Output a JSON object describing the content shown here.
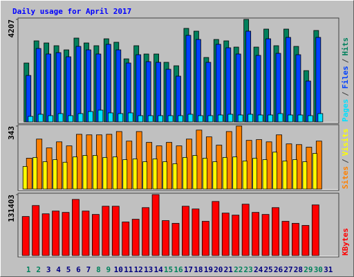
{
  "separator": "/",
  "chart_data": [
    {
      "type": "bar",
      "title": "Daily usage for April 2017",
      "ylim": [
        0,
        4207
      ],
      "yticks": [
        4207
      ],
      "series": [
        {
          "name": "Pages",
          "color": "#00e0ff",
          "values": [
            227,
            313,
            256,
            341,
            256,
            341,
            426,
            483,
            370,
            341,
            370,
            256,
            256,
            256,
            256,
            256,
            313,
            256,
            256,
            284,
            313,
            284,
            313,
            284,
            284,
            341,
            284,
            284,
            256,
            341,
            null
          ]
        },
        {
          "name": "Files",
          "color": "#0040ff",
          "values": [
            1905,
            3013,
            2786,
            2843,
            2672,
            3099,
            2956,
            2786,
            3184,
            2956,
            2416,
            2757,
            2473,
            2445,
            2160,
            1876,
            3553,
            3383,
            2445,
            3184,
            3042,
            2786,
            3724,
            2729,
            3411,
            2814,
            3468,
            2757,
            1677,
            3468,
            null
          ]
        },
        {
          "name": "Hits",
          "color": "#00805c",
          "values": [
            2416,
            3326,
            3240,
            3127,
            2956,
            3440,
            3240,
            3127,
            3411,
            3269,
            2587,
            3127,
            2786,
            2786,
            2445,
            2303,
            3838,
            3724,
            2644,
            3383,
            3326,
            3070,
            4207,
            3070,
            3809,
            3127,
            3809,
            3099,
            2104,
            3752,
            null
          ]
        }
      ]
    },
    {
      "type": "bar",
      "ylim": [
        0,
        343
      ],
      "yticks": [
        343
      ],
      "series": [
        {
          "name": "Sites",
          "color": "#ff8000",
          "values": [
            168,
            272,
            224,
            257,
            235,
            298,
            295,
            295,
            298,
            313,
            261,
            313,
            254,
            235,
            254,
            235,
            272,
            321,
            284,
            239,
            313,
            343,
            265,
            269,
            257,
            295,
            246,
            242,
            228,
            261,
            null
          ]
        },
        {
          "name": "Visits",
          "color": "#ffff00",
          "values": [
            123,
            172,
            149,
            160,
            146,
            175,
            183,
            183,
            172,
            175,
            160,
            164,
            149,
            164,
            149,
            138,
            172,
            183,
            168,
            149,
            172,
            175,
            153,
            168,
            160,
            201,
            153,
            160,
            149,
            194,
            null
          ]
        }
      ]
    },
    {
      "type": "bar",
      "ylim": [
        0,
        131403
      ],
      "yticks": [
        131403
      ],
      "categories": [
        "1",
        "2",
        "3",
        "4",
        "5",
        "6",
        "7",
        "8",
        "9",
        "10",
        "11",
        "12",
        "13",
        "14",
        "15",
        "16",
        "17",
        "18",
        "19",
        "20",
        "21",
        "22",
        "23",
        "24",
        "25",
        "26",
        "27",
        "28",
        "29",
        "30",
        "31"
      ],
      "category_colors": [
        "#00805c",
        "#00805c",
        "#000080",
        "#000080",
        "#000080",
        "#000080",
        "#000080",
        "#00805c",
        "#00805c",
        "#000080",
        "#000080",
        "#000080",
        "#000080",
        "#000080",
        "#00805c",
        "#00805c",
        "#000080",
        "#000080",
        "#000080",
        "#000080",
        "#000080",
        "#00805c",
        "#00805c",
        "#000080",
        "#000080",
        "#000080",
        "#000080",
        "#000080",
        "#00805c",
        "#00805c",
        "#000080"
      ],
      "series": [
        {
          "name": "KBytes",
          "color": "#ff0000",
          "values": [
            84150,
            107800,
            90000,
            95900,
            93000,
            121000,
            95900,
            88600,
            106300,
            106300,
            72300,
            78200,
            103300,
            131403,
            75300,
            69400,
            106300,
            100400,
            73800,
            116600,
            91500,
            87100,
            110700,
            93000,
            88600,
            103300,
            73800,
            69400,
            64900,
            109200,
            null
          ]
        }
      ]
    }
  ]
}
